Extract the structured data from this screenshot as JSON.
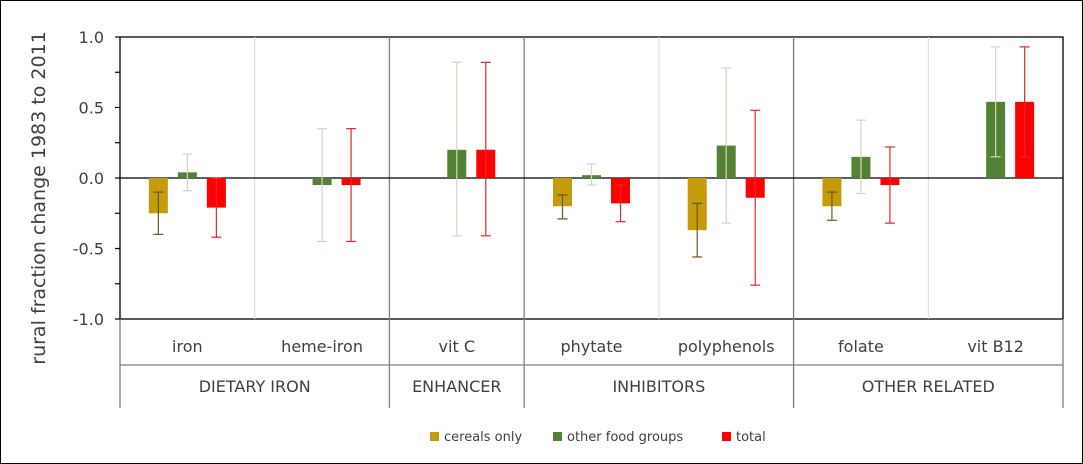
{
  "chart_data": {
    "type": "bar",
    "ylabel": "rural fraction change 1983 to 2011",
    "ylim": [
      -1.0,
      1.0
    ],
    "yticks": [
      "1.0",
      "0.5",
      "0.0",
      "-0.5",
      "-1.0"
    ],
    "categories": [
      "iron",
      "heme-iron",
      "vit C",
      "phytate",
      "polyphenols",
      "folate",
      "vit B12"
    ],
    "groups": [
      {
        "label": "DIETARY IRON",
        "categories": [
          "iron",
          "heme-iron"
        ]
      },
      {
        "label": "ENHANCER",
        "categories": [
          "vit C"
        ]
      },
      {
        "label": "INHIBITORS",
        "categories": [
          "phytate",
          "polyphenols"
        ]
      },
      {
        "label": "OTHER RELATED",
        "categories": [
          "folate",
          "vit B12"
        ]
      }
    ],
    "series": [
      {
        "name": "cereals only",
        "color": "#C69B0B",
        "values": [
          -0.25,
          null,
          null,
          -0.2,
          -0.37,
          -0.2,
          null
        ],
        "err_low": [
          -0.4,
          null,
          null,
          -0.29,
          -0.56,
          -0.3,
          null
        ],
        "err_high": [
          -0.1,
          null,
          null,
          -0.12,
          -0.18,
          -0.1,
          null
        ]
      },
      {
        "name": "other food groups",
        "color": "#548235",
        "values": [
          0.04,
          -0.05,
          0.2,
          0.02,
          0.23,
          0.15,
          0.54
        ],
        "err_low": [
          -0.09,
          -0.45,
          -0.41,
          -0.05,
          -0.32,
          -0.11,
          0.15
        ],
        "err_high": [
          0.17,
          0.35,
          0.82,
          0.1,
          0.78,
          0.41,
          0.93
        ]
      },
      {
        "name": "total",
        "color": "#FF0000",
        "values": [
          -0.21,
          -0.05,
          0.2,
          -0.18,
          -0.14,
          -0.05,
          0.54
        ],
        "err_low": [
          -0.42,
          -0.45,
          -0.41,
          -0.31,
          -0.76,
          -0.32,
          0.15
        ],
        "err_high": [
          0.0,
          0.35,
          0.82,
          -0.05,
          0.48,
          0.22,
          0.93
        ]
      }
    ],
    "legend_position": "bottom",
    "grid": false
  }
}
